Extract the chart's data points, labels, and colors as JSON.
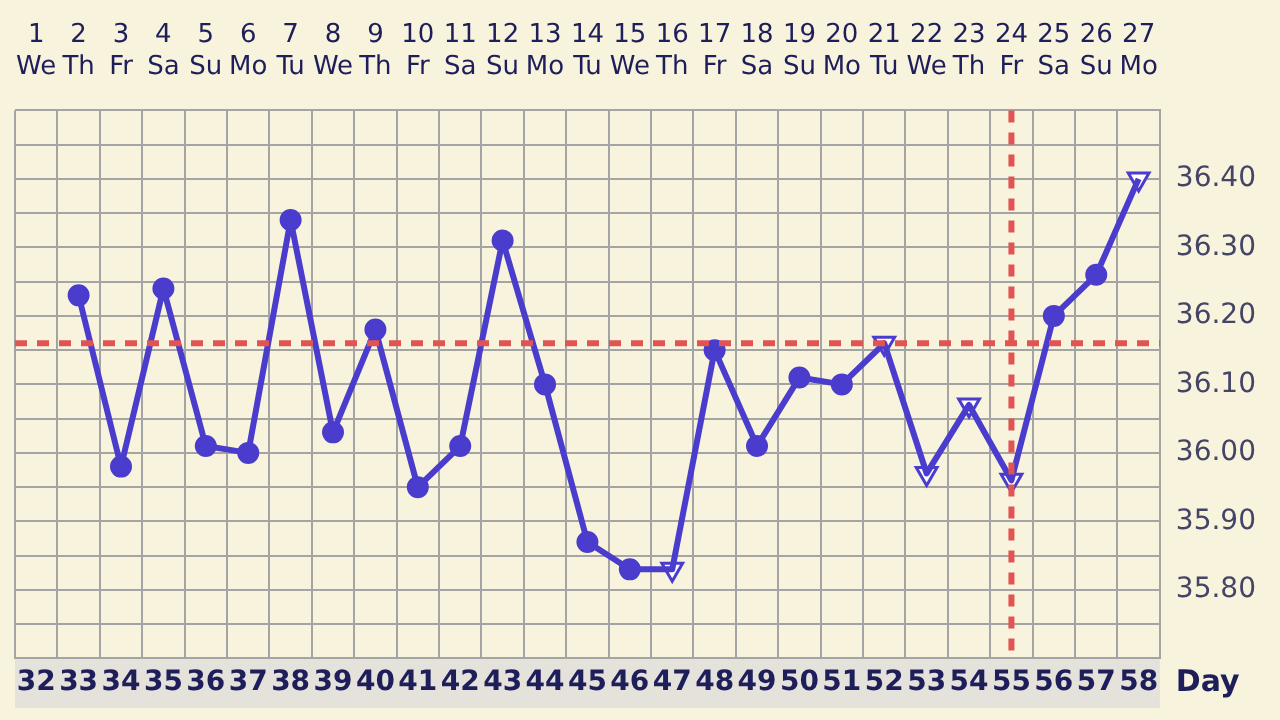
{
  "chart_data": {
    "type": "line",
    "categories": [
      "32",
      "33",
      "34",
      "35",
      "36",
      "37",
      "38",
      "39",
      "40",
      "41",
      "42",
      "43",
      "44",
      "45",
      "46",
      "47",
      "48",
      "49",
      "50",
      "51",
      "52",
      "53",
      "54",
      "55",
      "56",
      "57",
      "58"
    ],
    "xlabel": "Day",
    "x2lim": [
      0.5,
      27.5
    ],
    "x2ticks": [
      1,
      2,
      3,
      4,
      5,
      6,
      7,
      8,
      9,
      10,
      11,
      12,
      13,
      14,
      15,
      16,
      17,
      18,
      19,
      20,
      21,
      22,
      23,
      24,
      25,
      26,
      27
    ],
    "annotations": [
      "We",
      "Th",
      "Fr",
      "Sa",
      "Su",
      "Mo",
      "Tu",
      "We",
      "Th",
      "Fr",
      "Sa",
      "Su",
      "Mo",
      "Tu",
      "We",
      "Th",
      "Fr",
      "Sa",
      "Su",
      "Mo",
      "Tu",
      "We",
      "Th",
      "Fr",
      "Sa",
      "Su",
      "Mo"
    ],
    "ylim": [
      35.7,
      36.5
    ],
    "yticks": [
      {
        "value": 35.7,
        "label": null
      },
      {
        "value": 35.75,
        "label": null
      },
      {
        "value": 35.8,
        "label": "35.80"
      },
      {
        "value": 35.85,
        "label": null
      },
      {
        "value": 35.9,
        "label": "35.90"
      },
      {
        "value": 35.95,
        "label": null
      },
      {
        "value": 36.0,
        "label": "36.00"
      },
      {
        "value": 36.05,
        "label": null
      },
      {
        "value": 36.1,
        "label": "36.10"
      },
      {
        "value": 36.15,
        "label": null
      },
      {
        "value": 36.2,
        "label": "36.20"
      },
      {
        "value": 36.25,
        "label": null
      },
      {
        "value": 36.3,
        "label": "36.30"
      },
      {
        "value": 36.35,
        "label": null
      },
      {
        "value": 36.4,
        "label": "36.40"
      },
      {
        "value": 36.45,
        "label": null
      },
      {
        "value": 36.5,
        "label": null
      }
    ],
    "grid": true,
    "legend": false,
    "series": [
      {
        "type": "line",
        "marker": "none",
        "color": "#4a3ccc",
        "values": [
          null,
          36.23,
          35.98,
          36.24,
          36.01,
          36.0,
          36.34,
          36.03,
          36.18,
          35.95,
          36.01,
          36.31,
          36.1,
          35.87,
          35.83,
          35.83,
          36.15,
          36.01,
          36.11,
          36.1,
          36.16,
          35.97,
          36.07,
          35.96,
          36.2,
          36.26,
          36.4
        ]
      },
      {
        "type": "scatter",
        "marker": "circle",
        "color": "#4a3ccc",
        "values": [
          null,
          36.23,
          35.98,
          36.24,
          36.01,
          36.0,
          36.34,
          36.03,
          36.18,
          35.95,
          36.01,
          36.31,
          36.1,
          35.87,
          35.83,
          null,
          36.15,
          36.01,
          36.11,
          36.1,
          null,
          null,
          null,
          null,
          36.2,
          36.26,
          null
        ]
      },
      {
        "type": "scatter",
        "marker": "triangle",
        "color": "#4a3ccc",
        "values": [
          null,
          null,
          null,
          null,
          null,
          null,
          null,
          null,
          null,
          null,
          null,
          null,
          null,
          null,
          null,
          35.83,
          null,
          null,
          null,
          null,
          36.16,
          35.97,
          36.07,
          35.96,
          null,
          null,
          36.4
        ]
      }
    ],
    "ref_lines": [
      {
        "axis": "y",
        "value": 36.16,
        "color": "#e05454",
        "line_style": "dashed"
      },
      {
        "axis": "x",
        "value": "55",
        "color": "#e05454",
        "line_style": "dashed"
      }
    ]
  }
}
